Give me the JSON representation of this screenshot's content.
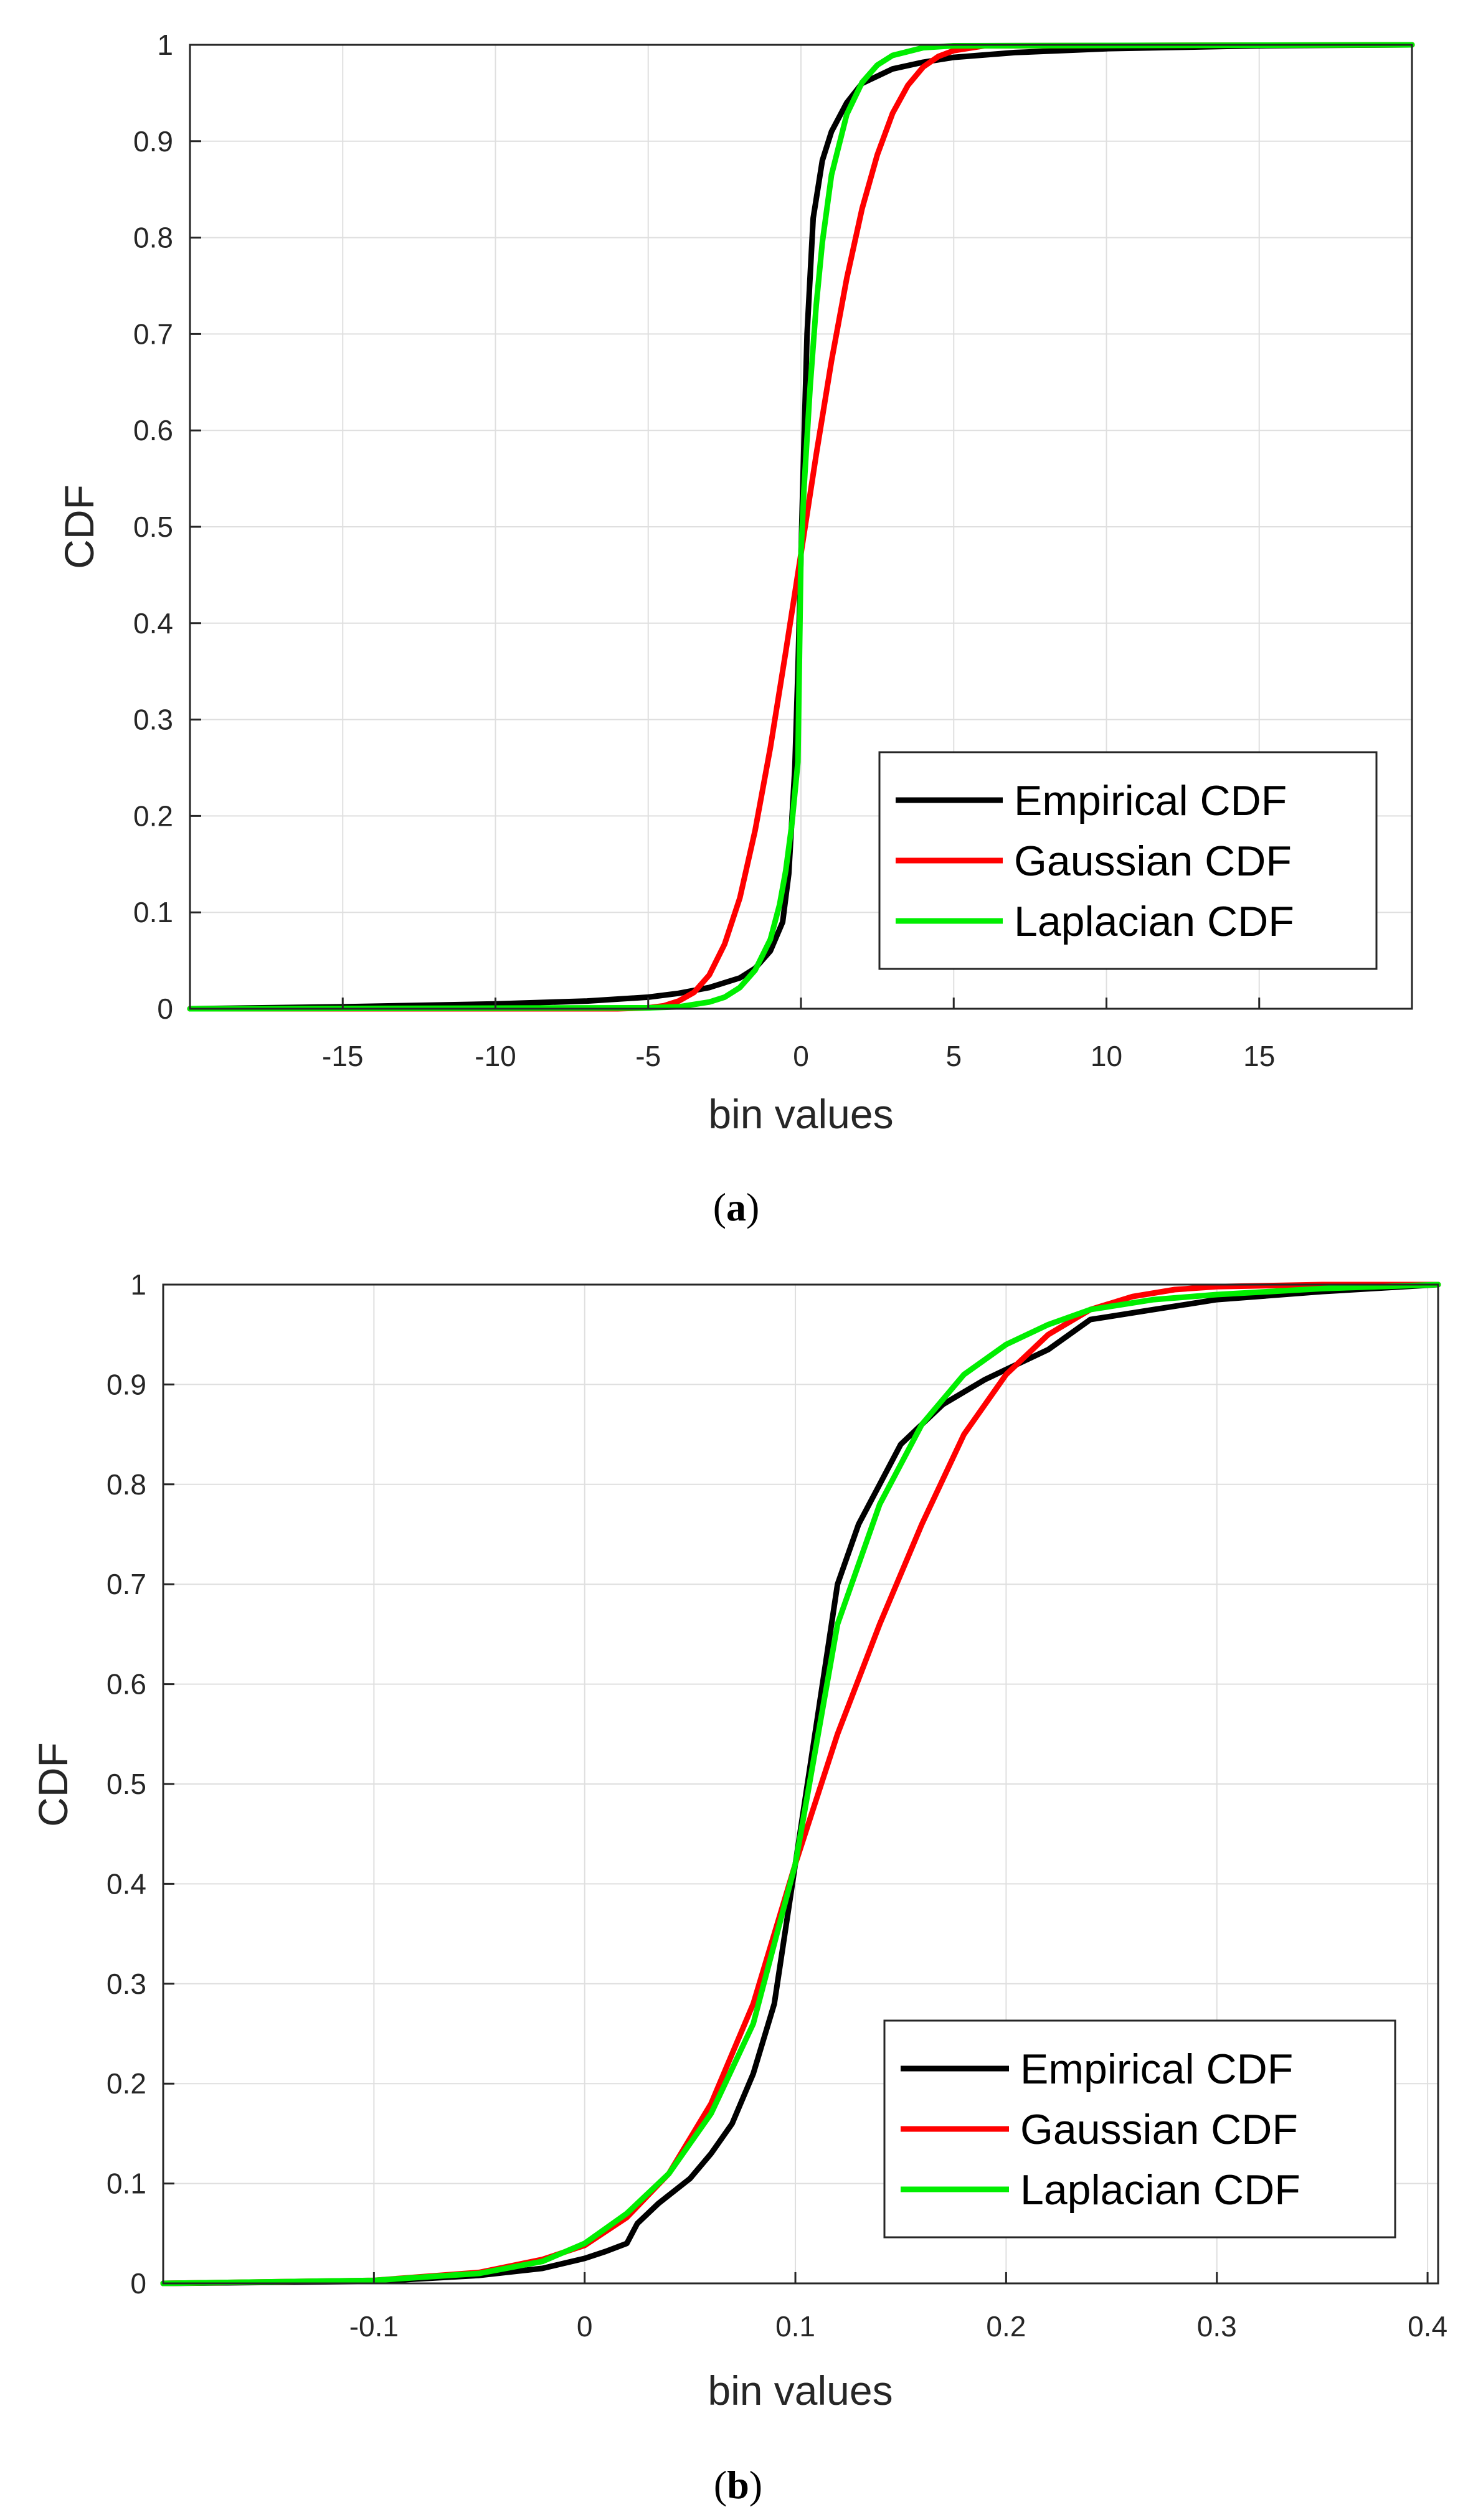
{
  "chart_data": [
    {
      "type": "line",
      "caption_letter": "a",
      "xlabel": "bin values",
      "ylabel": "CDF",
      "xlim": [
        -20,
        20
      ],
      "ylim": [
        0,
        1
      ],
      "grid": true,
      "x_ticks": [
        -15,
        -10,
        -5,
        0,
        5,
        10,
        15
      ],
      "x_tick_labels": [
        "-15",
        "-10",
        "-5",
        "0",
        "5",
        "10",
        "15"
      ],
      "y_ticks": [
        0,
        0.1,
        0.2,
        0.3,
        0.4,
        0.5,
        0.6,
        0.7,
        0.8,
        0.9,
        1
      ],
      "y_tick_labels": [
        "0",
        "0.1",
        "0.2",
        "0.3",
        "0.4",
        "0.5",
        "0.6",
        "0.7",
        "0.8",
        "0.9",
        "1"
      ],
      "legend_position": "bottom-right",
      "series": [
        {
          "name": "Empirical CDF",
          "color": "#000000",
          "x": [
            -20,
            -15,
            -10,
            -7,
            -5,
            -4,
            -3,
            -2,
            -1.5,
            -1,
            -0.6,
            -0.4,
            -0.2,
            -0.1,
            0,
            0.1,
            0.2,
            0.4,
            0.7,
            1,
            1.5,
            2,
            3,
            4,
            5,
            7,
            10,
            15,
            20
          ],
          "y": [
            0,
            0.002,
            0.005,
            0.008,
            0.012,
            0.016,
            0.022,
            0.032,
            0.042,
            0.06,
            0.09,
            0.14,
            0.25,
            0.35,
            0.47,
            0.59,
            0.7,
            0.82,
            0.88,
            0.91,
            0.94,
            0.96,
            0.975,
            0.982,
            0.987,
            0.992,
            0.996,
            0.999,
            1
          ]
        },
        {
          "name": "Gaussian CDF",
          "color": "#ff0000",
          "x": [
            -20,
            -6,
            -5,
            -4.5,
            -4,
            -3.5,
            -3,
            -2.5,
            -2,
            -1.5,
            -1,
            -0.5,
            0,
            0.5,
            1,
            1.5,
            2,
            2.5,
            3,
            3.5,
            4,
            4.5,
            5,
            6,
            20
          ],
          "y": [
            0,
            0,
            0.001,
            0.003,
            0.008,
            0.017,
            0.035,
            0.067,
            0.115,
            0.185,
            0.271,
            0.37,
            0.472,
            0.575,
            0.672,
            0.758,
            0.83,
            0.886,
            0.929,
            0.958,
            0.977,
            0.988,
            0.994,
            0.999,
            1
          ]
        },
        {
          "name": "Laplacian CDF",
          "color": "#00ee00",
          "x": [
            -20,
            -5,
            -4,
            -3,
            -2.5,
            -2,
            -1.5,
            -1,
            -0.7,
            -0.5,
            -0.3,
            -0.1,
            0,
            0.1,
            0.3,
            0.5,
            0.7,
            1,
            1.5,
            2,
            2.5,
            3,
            4,
            5,
            20
          ],
          "y": [
            0,
            0.001,
            0.002,
            0.007,
            0.012,
            0.022,
            0.04,
            0.072,
            0.108,
            0.143,
            0.191,
            0.256,
            0.472,
            0.54,
            0.645,
            0.73,
            0.795,
            0.865,
            0.928,
            0.961,
            0.979,
            0.989,
            0.997,
            0.999,
            1
          ]
        }
      ]
    },
    {
      "type": "line",
      "caption_letter": "b",
      "xlabel": "bin values",
      "ylabel": "CDF",
      "xlim": [
        -0.2,
        0.405
      ],
      "ylim": [
        0,
        1
      ],
      "grid": true,
      "x_ticks": [
        -0.1,
        0,
        0.1,
        0.2,
        0.3,
        0.4
      ],
      "x_tick_labels": [
        "-0.1",
        "0",
        "0.1",
        "0.2",
        "0.3",
        "0.4"
      ],
      "y_ticks": [
        0,
        0.1,
        0.2,
        0.3,
        0.4,
        0.5,
        0.6,
        0.7,
        0.8,
        0.9,
        1
      ],
      "y_tick_labels": [
        "0",
        "0.1",
        "0.2",
        "0.3",
        "0.4",
        "0.5",
        "0.6",
        "0.7",
        "0.8",
        "0.9",
        "1"
      ],
      "legend_position": "bottom-right",
      "series": [
        {
          "name": "Empirical CDF",
          "color": "#000000",
          "x": [
            -0.2,
            -0.1,
            -0.05,
            -0.02,
            0,
            0.01,
            0.02,
            0.025,
            0.035,
            0.05,
            0.06,
            0.07,
            0.08,
            0.09,
            0.1,
            0.11,
            0.12,
            0.13,
            0.14,
            0.15,
            0.17,
            0.19,
            0.2,
            0.22,
            0.24,
            0.27,
            0.3,
            0.35,
            0.405
          ],
          "y": [
            0,
            0.002,
            0.008,
            0.015,
            0.025,
            0.032,
            0.04,
            0.06,
            0.08,
            0.105,
            0.13,
            0.16,
            0.21,
            0.28,
            0.42,
            0.56,
            0.7,
            0.76,
            0.8,
            0.84,
            0.88,
            0.905,
            0.915,
            0.935,
            0.965,
            0.975,
            0.985,
            0.993,
            1
          ]
        },
        {
          "name": "Gaussian CDF",
          "color": "#ff0000",
          "x": [
            -0.2,
            -0.1,
            -0.05,
            -0.02,
            0,
            0.02,
            0.04,
            0.06,
            0.08,
            0.1,
            0.12,
            0.14,
            0.16,
            0.18,
            0.2,
            0.22,
            0.24,
            0.26,
            0.28,
            0.3,
            0.35,
            0.405
          ],
          "y": [
            0,
            0.003,
            0.011,
            0.024,
            0.038,
            0.066,
            0.11,
            0.18,
            0.28,
            0.42,
            0.55,
            0.66,
            0.76,
            0.85,
            0.91,
            0.95,
            0.975,
            0.988,
            0.995,
            0.998,
            1,
            1
          ]
        },
        {
          "name": "Laplacian CDF",
          "color": "#00ee00",
          "x": [
            -0.2,
            -0.1,
            -0.05,
            -0.02,
            0,
            0.02,
            0.04,
            0.06,
            0.08,
            0.1,
            0.12,
            0.14,
            0.16,
            0.18,
            0.2,
            0.22,
            0.24,
            0.27,
            0.3,
            0.35,
            0.405
          ],
          "y": [
            0,
            0.003,
            0.01,
            0.022,
            0.04,
            0.07,
            0.11,
            0.17,
            0.26,
            0.42,
            0.66,
            0.78,
            0.86,
            0.91,
            0.94,
            0.96,
            0.975,
            0.985,
            0.99,
            0.996,
            1
          ]
        }
      ]
    }
  ]
}
